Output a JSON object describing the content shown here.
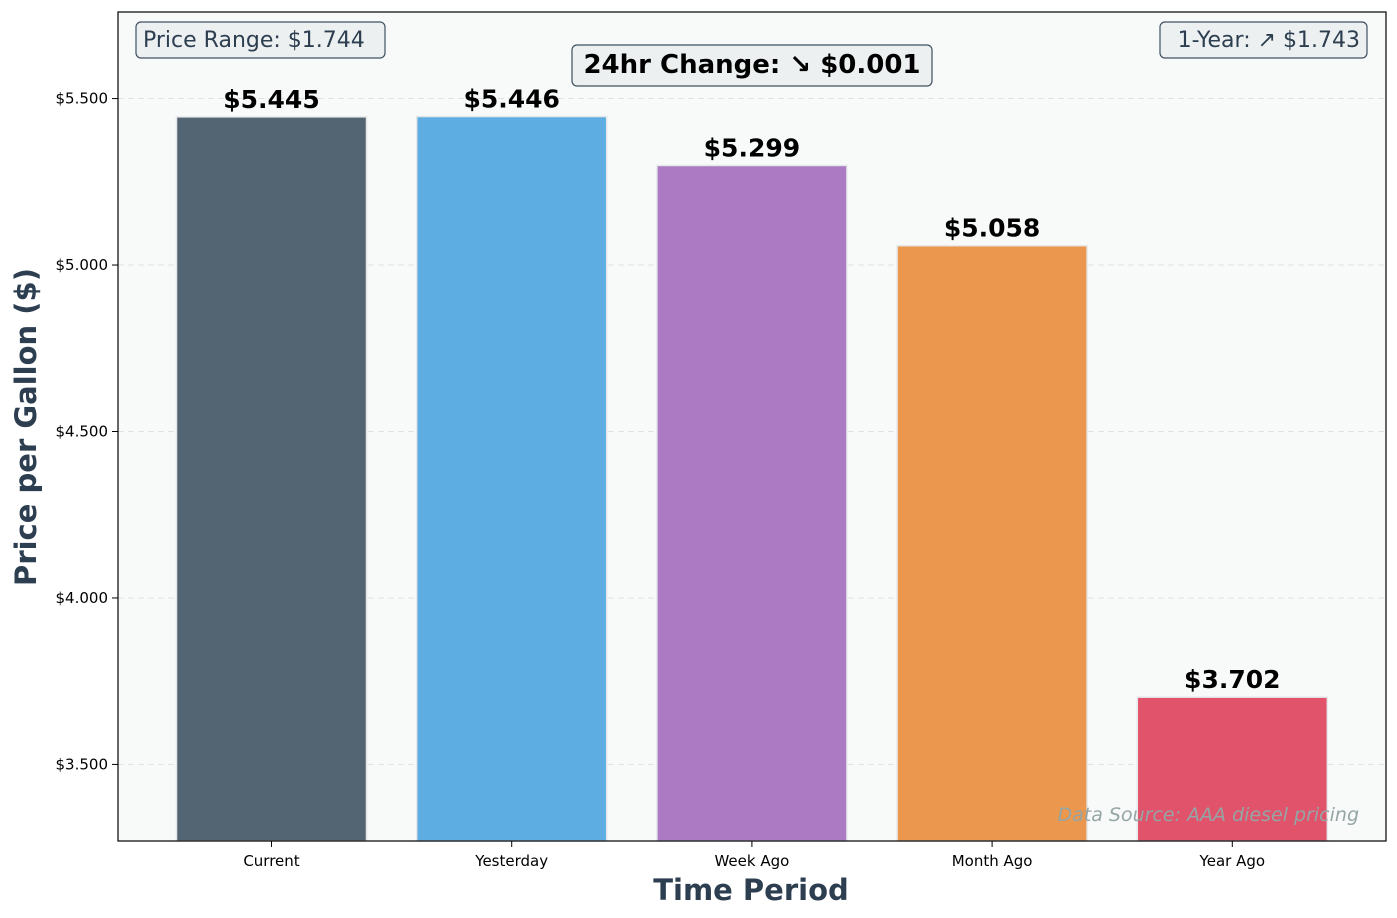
{
  "chart_data": {
    "type": "bar",
    "categories": [
      "Current",
      "Yesterday",
      "Week Ago",
      "Month Ago",
      "Year Ago"
    ],
    "values": [
      5.445,
      5.446,
      5.299,
      5.058,
      3.702
    ],
    "value_labels": [
      "$5.445",
      "$5.446",
      "$5.299",
      "$5.058",
      "$3.702"
    ],
    "colors": [
      "#536473",
      "#5dade2",
      "#ab7ac2",
      "#eb984e",
      "#e0536a"
    ],
    "xlabel": "Time Period",
    "ylabel": "Price per Gallon ($)",
    "ylim": [
      3.27,
      5.76
    ],
    "yticks": [
      3.5,
      4.0,
      4.5,
      5.0,
      5.5
    ],
    "ytick_labels": [
      "$3.500",
      "$4.000",
      "$4.500",
      "$5.000",
      "$5.500"
    ],
    "grid": "horizontal dashed",
    "annotations": {
      "price_range": "Price Range: $1.744",
      "change_24hr": "24hr Change: ↘ $0.001",
      "one_year": "1-Year: ↗ $1.743",
      "source": "Data Source: AAA diesel pricing"
    }
  }
}
